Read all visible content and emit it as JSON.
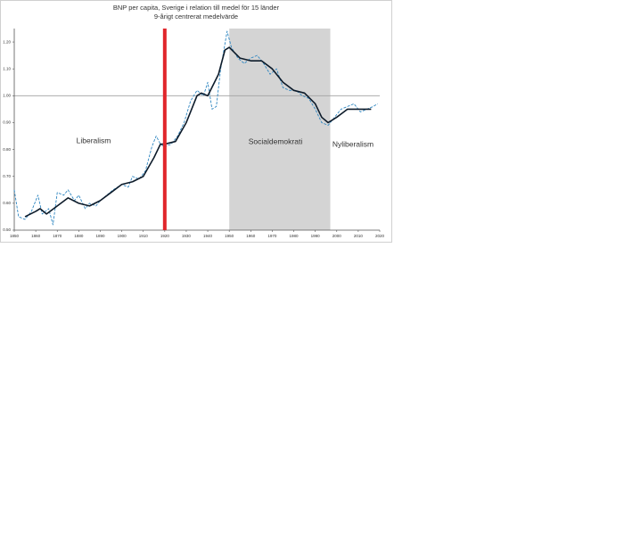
{
  "chart_data": {
    "type": "line",
    "title": "BNP per capita, Sverige i relation till medel för 15 länder",
    "subtitle": "9-årigt centrerat medelvärde",
    "annotations": [
      "Liberalism",
      "Socialdemokrati",
      "Nyliberalism"
    ],
    "xlim": [
      1850,
      2020
    ],
    "xticks": [
      1850,
      1860,
      1870,
      1880,
      1890,
      1900,
      1910,
      1920,
      1930,
      1940,
      1950,
      1960,
      1970,
      1980,
      1990,
      2000,
      2010,
      2020
    ],
    "ylim": [
      0.5,
      1.25
    ],
    "yticks": [
      {
        "value": 0.5,
        "label": "0.50"
      },
      {
        "value": 0.6,
        "label": "0.60"
      },
      {
        "value": 0.7,
        "label": "0.70"
      },
      {
        "value": 0.8,
        "label": "0.80"
      },
      {
        "value": 0.9,
        "label": "0.90"
      },
      {
        "value": 1.0,
        "label": "1.00"
      },
      {
        "value": 1.1,
        "label": "1.10"
      },
      {
        "value": 1.2,
        "label": "1.20"
      }
    ],
    "reference_y": 1.0,
    "marker_x": 1920,
    "marker_color": "#e0262b",
    "shade_x": [
      1950,
      1997
    ],
    "shade_color": "#d4d4d4",
    "series": [
      {
        "color": "#2e86c1",
        "dashed": true,
        "x": [
          1850,
          1852,
          1855,
          1858,
          1861,
          1863,
          1866,
          1868,
          1870,
          1873,
          1875,
          1878,
          1880,
          1883,
          1885,
          1888,
          1890,
          1893,
          1896,
          1900,
          1903,
          1905,
          1908,
          1911,
          1914,
          1916,
          1918,
          1920,
          1923,
          1926,
          1929,
          1932,
          1935,
          1938,
          1940,
          1942,
          1944,
          1946,
          1949,
          1951,
          1954,
          1957,
          1960,
          1963,
          1966,
          1969,
          1972,
          1975,
          1978,
          1981,
          1984,
          1987,
          1990,
          1993,
          1996,
          1999,
          2002,
          2005,
          2008,
          2011,
          2014,
          2017,
          2019
        ],
        "values": [
          0.65,
          0.55,
          0.54,
          0.57,
          0.63,
          0.56,
          0.58,
          0.52,
          0.64,
          0.63,
          0.65,
          0.61,
          0.63,
          0.58,
          0.6,
          0.59,
          0.61,
          0.63,
          0.65,
          0.67,
          0.66,
          0.7,
          0.69,
          0.72,
          0.81,
          0.85,
          0.82,
          0.81,
          0.82,
          0.85,
          0.9,
          0.98,
          1.02,
          1.0,
          1.05,
          0.95,
          0.96,
          1.1,
          1.24,
          1.18,
          1.14,
          1.12,
          1.14,
          1.15,
          1.12,
          1.08,
          1.1,
          1.03,
          1.02,
          1.02,
          1.0,
          0.99,
          0.95,
          0.9,
          0.89,
          0.92,
          0.95,
          0.96,
          0.97,
          0.94,
          0.95,
          0.96,
          0.97
        ]
      },
      {
        "color": "#0d1b2a",
        "dashed": false,
        "x": [
          1855,
          1860,
          1862,
          1865,
          1870,
          1875,
          1880,
          1885,
          1890,
          1895,
          1900,
          1905,
          1910,
          1915,
          1918,
          1920,
          1925,
          1930,
          1935,
          1937,
          1940,
          1945,
          1948,
          1950,
          1955,
          1960,
          1965,
          1970,
          1975,
          1980,
          1985,
          1990,
          1993,
          1996,
          2000,
          2005,
          2010,
          2016
        ],
        "values": [
          0.55,
          0.57,
          0.58,
          0.56,
          0.59,
          0.62,
          0.6,
          0.59,
          0.61,
          0.64,
          0.67,
          0.68,
          0.7,
          0.77,
          0.82,
          0.82,
          0.83,
          0.9,
          1.0,
          1.01,
          1.0,
          1.08,
          1.17,
          1.18,
          1.14,
          1.13,
          1.13,
          1.1,
          1.05,
          1.02,
          1.01,
          0.97,
          0.92,
          0.9,
          0.92,
          0.95,
          0.95,
          0.95
        ]
      }
    ]
  }
}
